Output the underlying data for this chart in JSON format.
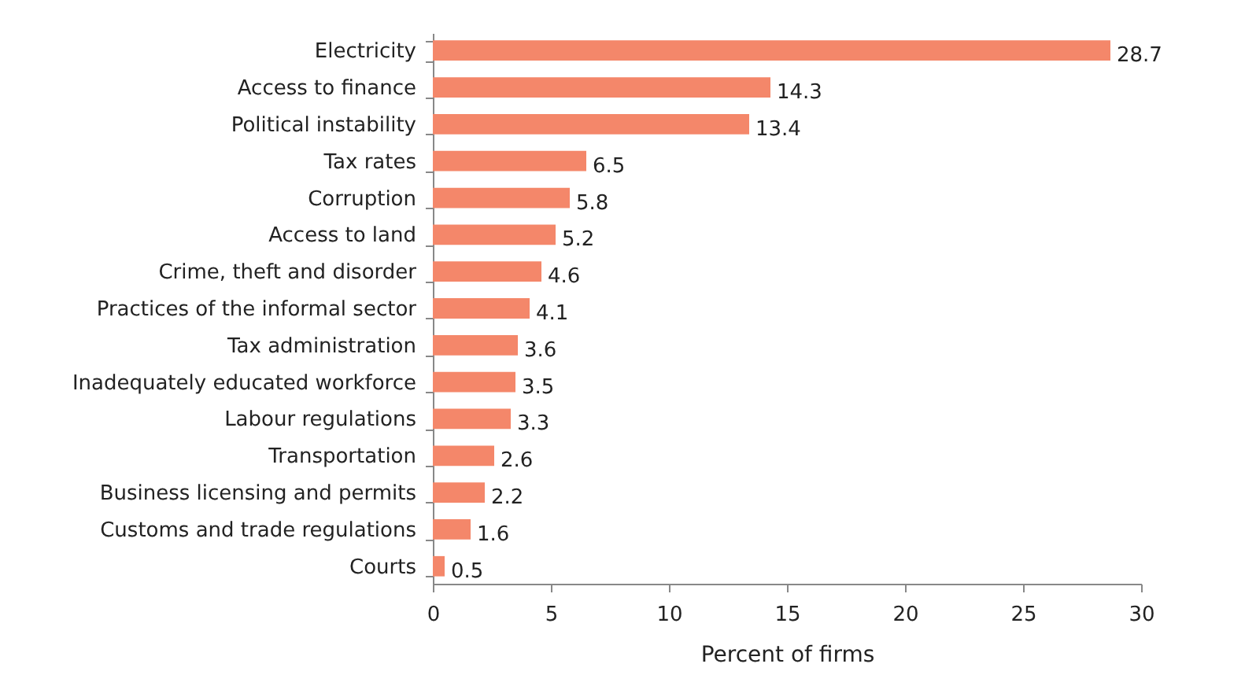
{
  "chart_data": {
    "type": "bar",
    "orientation": "horizontal",
    "xlabel": "Percent of firms",
    "categories": [
      "Electricity",
      "Access to finance",
      "Political instability",
      "Tax rates",
      "Corruption",
      "Access to land",
      "Crime, theft and disorder",
      "Practices of the informal sector",
      "Tax administration",
      "Inadequately educated workforce",
      "Labour regulations",
      "Transportation",
      "Business licensing and permits",
      "Customs and trade regulations",
      "Courts"
    ],
    "values": [
      28.7,
      14.3,
      13.4,
      6.5,
      5.8,
      5.2,
      4.6,
      4.1,
      3.6,
      3.5,
      3.3,
      2.6,
      2.2,
      1.6,
      0.5
    ],
    "color": "#f4876a",
    "xlim": [
      0,
      30
    ],
    "xticks": [
      0,
      5,
      10,
      15,
      20,
      25,
      30
    ],
    "grid": false,
    "data_labels": true
  }
}
